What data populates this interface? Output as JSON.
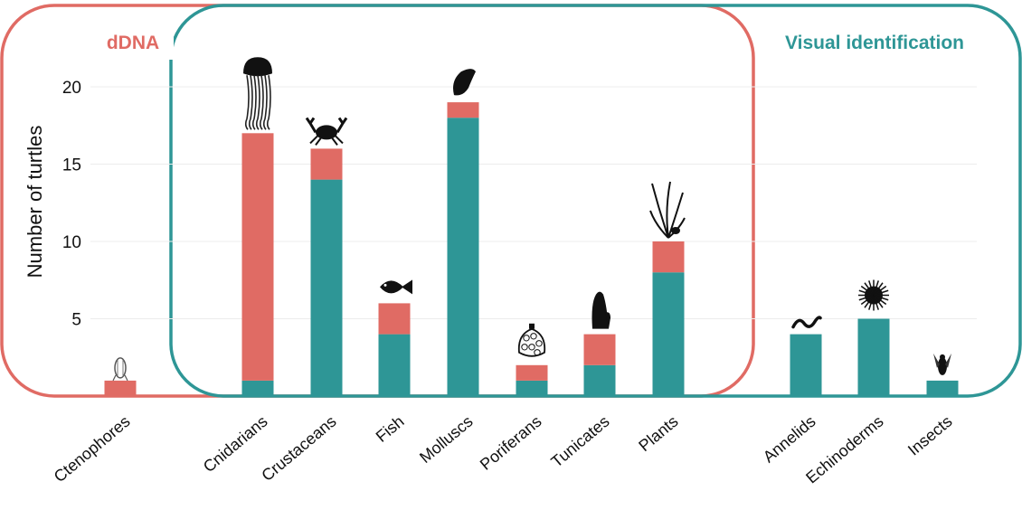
{
  "chart_data": {
    "type": "bar",
    "stacked": true,
    "categories": [
      "Ctenophores",
      "Cnidarians",
      "Crustaceans",
      "Fish",
      "Molluscs",
      "Poriferans",
      "Tunicates",
      "Plants",
      "Annelids",
      "Echinoderms",
      "Insects"
    ],
    "series": [
      {
        "name": "Visual identification",
        "color": "#2e9696",
        "values": [
          0,
          1,
          14,
          4,
          18,
          1,
          2,
          8,
          4,
          5,
          1
        ]
      },
      {
        "name": "dDNA",
        "color": "#e06b64",
        "values": [
          1,
          16,
          2,
          2,
          1,
          1,
          2,
          2,
          0,
          0,
          0
        ]
      }
    ],
    "ylabel": "Number of turtles",
    "xlabel": "",
    "ylim": [
      0,
      21
    ],
    "yticks": [
      5,
      10,
      15,
      20
    ],
    "grid": true,
    "legend_placement": "top",
    "icons": [
      "ctenophore-icon",
      "jellyfish-icon",
      "crab-icon",
      "fish-icon",
      "shell-icon",
      "sponge-icon",
      "tunicate-icon",
      "seaweed-icon",
      "worm-icon",
      "urchin-icon",
      "fly-icon"
    ]
  },
  "groups": {
    "ddna": {
      "label": "dDNA",
      "color": "#e06b64"
    },
    "visual": {
      "label": "Visual identification",
      "color": "#2e9696"
    }
  }
}
